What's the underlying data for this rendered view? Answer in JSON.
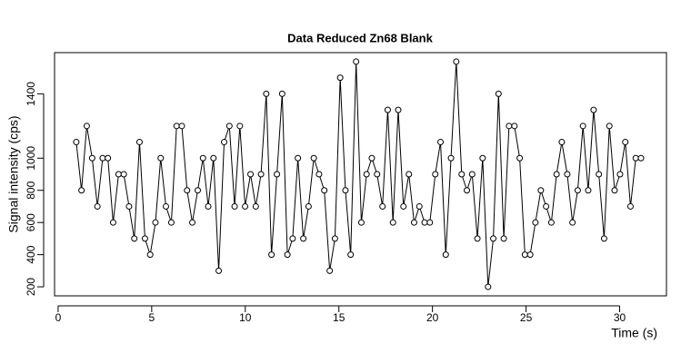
{
  "chart_data": {
    "type": "line",
    "title": "Data Reduced Zn68 Blank",
    "xlabel": "Time (s)",
    "ylabel": "Signal intensity (cps)",
    "x": [
      0.97,
      1.25,
      1.53,
      1.82,
      2.1,
      2.38,
      2.66,
      2.94,
      3.23,
      3.51,
      3.79,
      4.07,
      4.35,
      4.64,
      4.92,
      5.2,
      5.48,
      5.76,
      6.05,
      6.33,
      6.61,
      6.89,
      7.17,
      7.46,
      7.74,
      8.02,
      8.3,
      8.58,
      8.87,
      9.15,
      9.43,
      9.71,
      9.99,
      10.28,
      10.56,
      10.84,
      11.12,
      11.4,
      11.69,
      11.97,
      12.25,
      12.53,
      12.81,
      13.1,
      13.38,
      13.66,
      13.94,
      14.22,
      14.51,
      14.79,
      15.07,
      15.35,
      15.63,
      15.92,
      16.2,
      16.48,
      16.76,
      17.04,
      17.33,
      17.61,
      17.89,
      18.17,
      18.45,
      18.74,
      19.02,
      19.3,
      19.58,
      19.86,
      20.15,
      20.43,
      20.71,
      20.99,
      21.27,
      21.56,
      21.84,
      22.12,
      22.4,
      22.68,
      22.97,
      23.25,
      23.53,
      23.81,
      24.09,
      24.38,
      24.66,
      24.94,
      25.22,
      25.5,
      25.79,
      26.07,
      26.35,
      26.63,
      26.91,
      27.2,
      27.48,
      27.76,
      28.04,
      28.32,
      28.61,
      28.89,
      29.17,
      29.45,
      29.73,
      30.02,
      30.3,
      30.58,
      30.86,
      31.14
    ],
    "values": [
      1100,
      800,
      1200,
      1000,
      700,
      1000,
      1000,
      600,
      900,
      900,
      700,
      500,
      1100,
      500,
      400,
      600,
      1000,
      700,
      600,
      1200,
      1200,
      800,
      600,
      800,
      1000,
      700,
      1000,
      300,
      1100,
      1200,
      700,
      1200,
      700,
      900,
      700,
      900,
      1400,
      400,
      900,
      1400,
      400,
      500,
      1000,
      500,
      700,
      1000,
      900,
      800,
      300,
      500,
      1500,
      800,
      400,
      1600,
      600,
      900,
      1000,
      900,
      700,
      1300,
      600,
      1300,
      700,
      900,
      600,
      700,
      600,
      600,
      900,
      1100,
      400,
      1000,
      1600,
      900,
      800,
      900,
      500,
      1000,
      200,
      500,
      1400,
      500,
      1200,
      1200,
      1000,
      400,
      400,
      600,
      800,
      700,
      600,
      900,
      1100,
      900,
      600,
      800,
      1200,
      800,
      1300,
      900,
      500,
      1200,
      800,
      900,
      1100,
      700,
      1000,
      1000
    ],
    "color": "#000000",
    "marker": "circle",
    "xlim": [
      -0.19,
      32.5
    ],
    "xticks": [
      0,
      5,
      10,
      15,
      20,
      25,
      30
    ],
    "ylim": [
      144,
      1656
    ],
    "yticks": [
      200,
      400,
      600,
      800,
      1000,
      1400
    ],
    "grid": false
  }
}
